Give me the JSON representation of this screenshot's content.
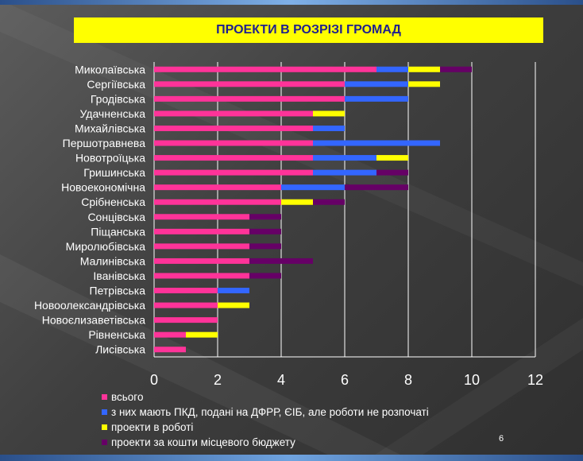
{
  "slide_number": "6",
  "chart_data": {
    "type": "bar",
    "orientation": "horizontal",
    "stacked": true,
    "title": "ПРОЕКТИ В РОЗРІЗІ ГРОМАД",
    "categories": [
      "Миколаївська",
      "Сергіївська",
      "Гродівська",
      "Удачненська",
      "Михайлівська",
      "Першотравнева",
      "Новотроїцька",
      "Гришинська",
      "Новоекономічна",
      "Срібненська",
      "Сонцівська",
      "Піщанська ",
      "Миролюбівська",
      "Малинівська",
      "Іванівська",
      "Петрівська",
      "Новоолександрівська",
      "Новоєлизаветівська",
      "Рівненська",
      "Лисівська"
    ],
    "series": [
      {
        "name": "всього",
        "color": "#ff3399",
        "values": [
          7,
          6,
          6,
          5,
          5,
          5,
          5,
          5,
          4,
          4,
          3,
          3,
          3,
          3,
          3,
          2,
          2,
          2,
          1,
          1
        ]
      },
      {
        "name": "з них мають ПКД, подані на ДФРР, ЄІБ, але роботи не розпочаті",
        "color": "#3366ff",
        "values": [
          1,
          2,
          2,
          0,
          1,
          4,
          2,
          2,
          2,
          0,
          0,
          0,
          0,
          0,
          0,
          1,
          0,
          0,
          0,
          0
        ]
      },
      {
        "name": "проекти в роботі",
        "color": "#ffff00",
        "values": [
          1,
          1,
          0,
          1,
          0,
          0,
          1,
          0,
          0,
          1,
          0,
          0,
          0,
          0,
          0,
          0,
          1,
          0,
          1,
          0
        ]
      },
      {
        "name": "проекти за кошти місцевого бюджету",
        "color": "#660066",
        "values": [
          1,
          0,
          0,
          0,
          0,
          0,
          0,
          1,
          2,
          1,
          1,
          1,
          1,
          2,
          1,
          0,
          0,
          0,
          0,
          0
        ]
      }
    ],
    "xlim": [
      0,
      12
    ],
    "xticks": [
      "0",
      "2",
      "4",
      "6",
      "8",
      "10",
      "12"
    ],
    "grid": true,
    "legend_position": "bottom"
  }
}
